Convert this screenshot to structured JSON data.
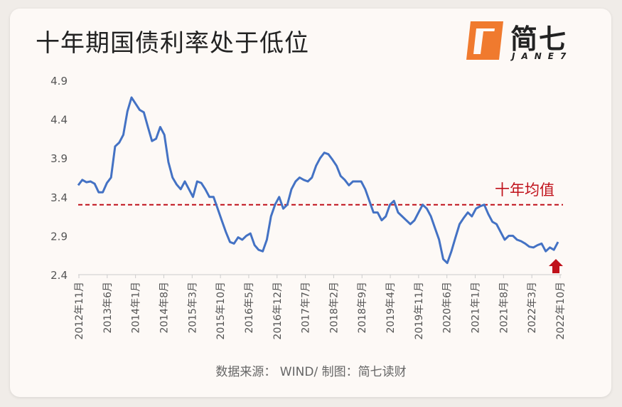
{
  "title": "十年期国债利率处于低位",
  "logo": {
    "cn": "简七",
    "en": "JANE7",
    "mark_color": "#f07a2e"
  },
  "source": "数据来源： WIND/ 制图：简七读财",
  "colors": {
    "line": "#4472c4",
    "avg": "#c0111a",
    "arrow": "#c0111a",
    "axis_text": "#555555"
  },
  "chart_data": {
    "type": "line",
    "title": "十年期国债利率处于低位",
    "xlabel": "",
    "ylabel": "",
    "ylim": [
      2.4,
      4.9
    ],
    "yticks": [
      "2.4",
      "2.9",
      "3.4",
      "3.9",
      "4.4",
      "4.9"
    ],
    "grid": false,
    "x_tick_labels": [
      "2012年11月",
      "2013年6月",
      "2014年1月",
      "2014年8月",
      "2015年3月",
      "2015年10月",
      "2016年5月",
      "2016年12月",
      "2017年7月",
      "2018年2月",
      "2018年9月",
      "2019年4月",
      "2019年11月",
      "2020年6月",
      "2021年1月",
      "2021年8月",
      "2022年3月",
      "2022年10月"
    ],
    "reference_line": {
      "label": "十年均值",
      "value": 3.3,
      "style": "dashed"
    },
    "annotation": "up-arrow at latest value",
    "series": [
      {
        "values": [
          3.55,
          3.62,
          3.59,
          3.6,
          3.57,
          3.46,
          3.46,
          3.58,
          3.65,
          4.05,
          4.1,
          4.2,
          4.5,
          4.68,
          4.6,
          4.52,
          4.49,
          4.3,
          4.12,
          4.15,
          4.3,
          4.2,
          3.85,
          3.65,
          3.56,
          3.5,
          3.6,
          3.5,
          3.4,
          3.6,
          3.58,
          3.5,
          3.4,
          3.4,
          3.25,
          3.1,
          2.95,
          2.82,
          2.8,
          2.88,
          2.85,
          2.9,
          2.93,
          2.78,
          2.72,
          2.7,
          2.85,
          3.15,
          3.3,
          3.4,
          3.25,
          3.3,
          3.5,
          3.6,
          3.65,
          3.62,
          3.6,
          3.65,
          3.8,
          3.9,
          3.97,
          3.95,
          3.88,
          3.8,
          3.67,
          3.62,
          3.55,
          3.6,
          3.6,
          3.6,
          3.5,
          3.35,
          3.2,
          3.2,
          3.1,
          3.15,
          3.3,
          3.35,
          3.2,
          3.15,
          3.1,
          3.05,
          3.1,
          3.2,
          3.3,
          3.25,
          3.15,
          3.0,
          2.85,
          2.6,
          2.55,
          2.7,
          2.88,
          3.05,
          3.13,
          3.2,
          3.15,
          3.25,
          3.28,
          3.3,
          3.18,
          3.08,
          3.05,
          2.95,
          2.85,
          2.9,
          2.9,
          2.85,
          2.83,
          2.8,
          2.76,
          2.75,
          2.78,
          2.8,
          2.7,
          2.75,
          2.72,
          2.82
        ]
      }
    ]
  }
}
